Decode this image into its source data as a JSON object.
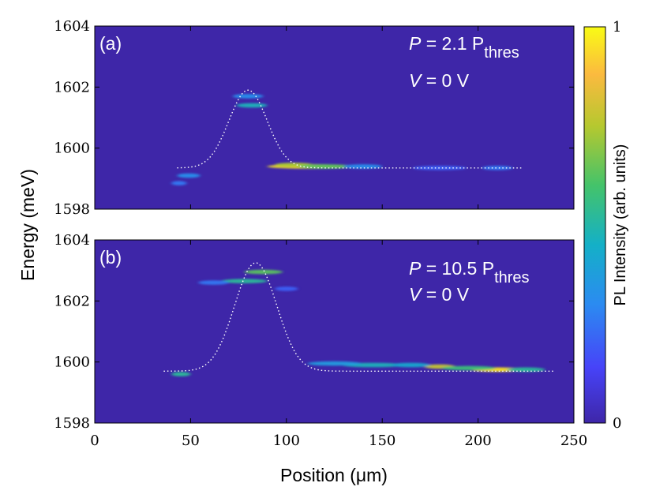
{
  "chart_data": {
    "type": "heatmap",
    "xlabel": "Position (μm)",
    "ylabel": "Energy (meV)",
    "xlim": [
      0,
      250
    ],
    "x_ticks": [
      "0",
      "50",
      "100",
      "150",
      "200",
      "250"
    ],
    "x_tick_values": [
      0,
      50,
      100,
      150,
      200,
      250
    ],
    "colorbar": {
      "label": "PL Intensity (arb. units)",
      "ticks": [
        "0",
        "1"
      ],
      "tick_values": [
        0,
        1
      ],
      "colormap": "parula",
      "colors": [
        "#3e26a8",
        "#4743f8",
        "#2b8bf1",
        "#14b0c7",
        "#44c36a",
        "#b6c82f",
        "#fbba3f",
        "#f9fb15"
      ]
    },
    "panels": [
      {
        "letter": "(a)",
        "ylim": [
          1598,
          1604
        ],
        "y_ticks": [
          "1598",
          "1600",
          "1602",
          "1604"
        ],
        "y_tick_values": [
          1598,
          1600,
          1602,
          1604
        ],
        "power_prefix": "P",
        "power_value": " = 2.1 P",
        "power_sub": "thres",
        "voltage_prefix": "V",
        "voltage_value": " = 0 V",
        "potential_curve": {
          "x_start": 43,
          "x_end": 223,
          "baseline": 1599.35,
          "peak": 1601.9,
          "center": 80,
          "sigma": 10
        },
        "emission_spots": [
          {
            "x": 112,
            "e": 1599.4,
            "intensity": 0.95,
            "w": 22
          },
          {
            "x": 104,
            "e": 1599.45,
            "intensity": 0.7,
            "w": 10
          },
          {
            "x": 120,
            "e": 1599.4,
            "intensity": 0.6,
            "w": 14
          },
          {
            "x": 82,
            "e": 1601.4,
            "intensity": 0.45,
            "w": 8
          },
          {
            "x": 80,
            "e": 1601.7,
            "intensity": 0.3,
            "w": 8
          },
          {
            "x": 49,
            "e": 1599.1,
            "intensity": 0.3,
            "w": 6
          },
          {
            "x": 44,
            "e": 1598.85,
            "intensity": 0.25,
            "w": 4
          },
          {
            "x": 140,
            "e": 1599.4,
            "intensity": 0.3,
            "w": 10
          },
          {
            "x": 180,
            "e": 1599.35,
            "intensity": 0.2,
            "w": 14
          },
          {
            "x": 210,
            "e": 1599.35,
            "intensity": 0.25,
            "w": 8
          }
        ]
      },
      {
        "letter": "(b)",
        "ylim": [
          1598,
          1604
        ],
        "y_ticks": [
          "1598",
          "1600",
          "1602",
          "1604"
        ],
        "y_tick_values": [
          1598,
          1600,
          1602,
          1604
        ],
        "power_prefix": "P",
        "power_value": " = 10.5 P",
        "power_sub": "thres",
        "voltage_prefix": "V",
        "voltage_value": " = 0 V",
        "potential_curve": {
          "x_start": 36,
          "x_end": 240,
          "baseline": 1599.7,
          "peak": 1603.25,
          "center": 84,
          "sigma": 11
        },
        "emission_spots": [
          {
            "x": 210,
            "e": 1599.75,
            "intensity": 0.95,
            "w": 14
          },
          {
            "x": 180,
            "e": 1599.85,
            "intensity": 0.75,
            "w": 8
          },
          {
            "x": 195,
            "e": 1599.8,
            "intensity": 0.55,
            "w": 14
          },
          {
            "x": 225,
            "e": 1599.75,
            "intensity": 0.5,
            "w": 10
          },
          {
            "x": 145,
            "e": 1599.9,
            "intensity": 0.45,
            "w": 16
          },
          {
            "x": 125,
            "e": 1599.95,
            "intensity": 0.35,
            "w": 14
          },
          {
            "x": 165,
            "e": 1599.9,
            "intensity": 0.4,
            "w": 10
          },
          {
            "x": 88,
            "e": 1602.95,
            "intensity": 0.6,
            "w": 10
          },
          {
            "x": 78,
            "e": 1602.65,
            "intensity": 0.5,
            "w": 12
          },
          {
            "x": 45,
            "e": 1599.6,
            "intensity": 0.5,
            "w": 5
          },
          {
            "x": 62,
            "e": 1602.6,
            "intensity": 0.25,
            "w": 8
          },
          {
            "x": 100,
            "e": 1602.4,
            "intensity": 0.2,
            "w": 6
          }
        ]
      }
    ]
  }
}
